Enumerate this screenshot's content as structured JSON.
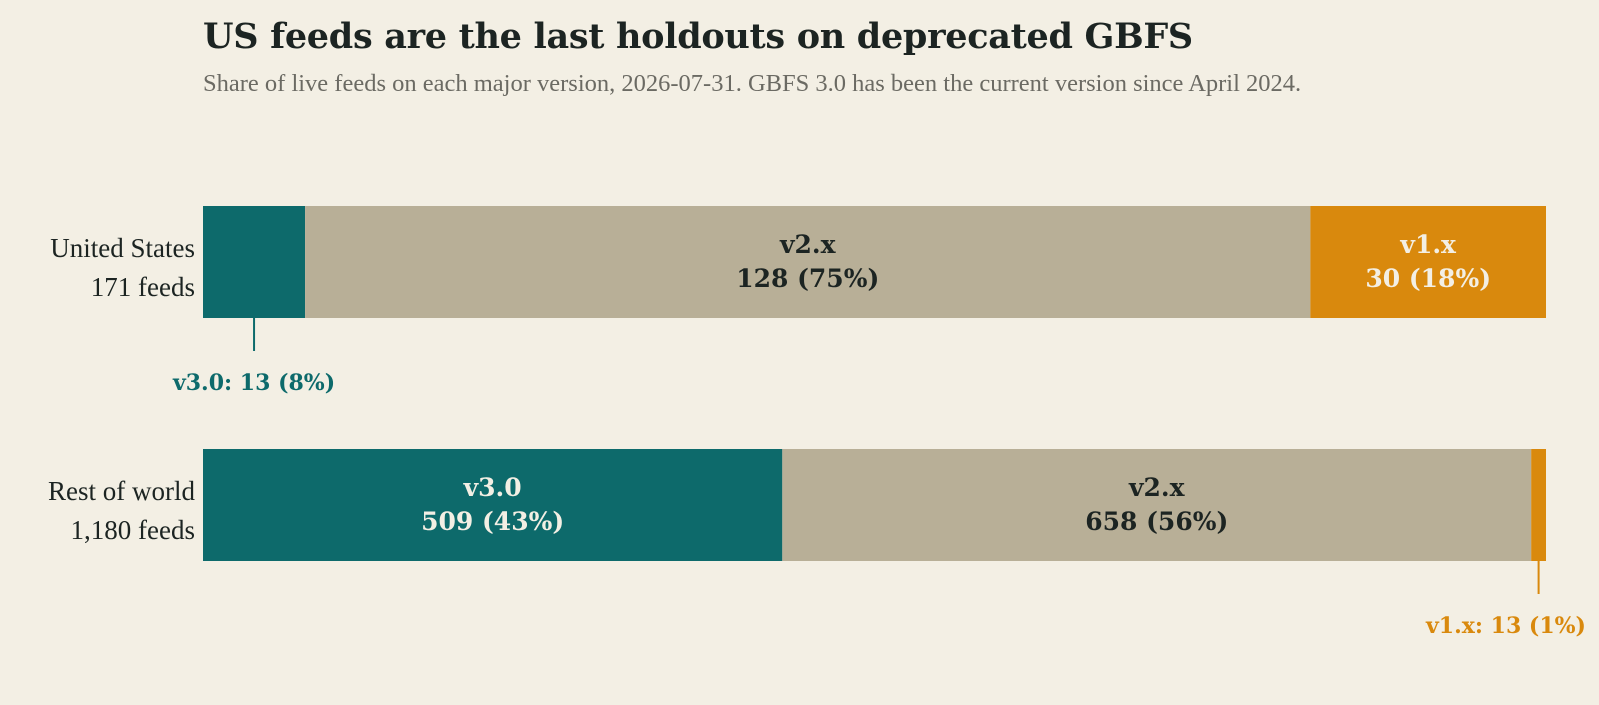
{
  "chart_data": {
    "type": "bar",
    "orientation": "horizontal",
    "stacked": true,
    "normalized": true,
    "title": "US feeds are the last holdouts on deprecated GBFS",
    "subtitle": "Share of live feeds on each major version, 2026-07-31. GBFS 3.0 has been the current version since April 2024.",
    "xlim": [
      0,
      1
    ],
    "grid": false,
    "legend": "none",
    "categories": [
      {
        "name": "United States",
        "total_label": "171 feeds",
        "total": 171
      },
      {
        "name": "Rest of world",
        "total_label": "1,180 feeds",
        "total": 1180
      }
    ],
    "series": [
      {
        "name": "v3.0",
        "color": "#0d6a6b",
        "text_color": "#f3efe4",
        "values": [
          13,
          509
        ],
        "shares": [
          "8%",
          "43%"
        ],
        "labels": [
          "",
          "v3.0"
        ],
        "value_labels": [
          "",
          "509  (43%)"
        ],
        "callouts": [
          "v3.0: 13 (8%)",
          ""
        ]
      },
      {
        "name": "v2.x",
        "color": "#b8af97",
        "text_color": "#1c2422",
        "values": [
          128,
          658
        ],
        "shares": [
          "75%",
          "56%"
        ],
        "labels": [
          "v2.x",
          "v2.x"
        ],
        "value_labels": [
          "128  (75%)",
          "658  (56%)"
        ],
        "callouts": [
          "",
          ""
        ]
      },
      {
        "name": "v1.x",
        "color": "#d9890d",
        "text_color": "#f3efe4",
        "values": [
          30,
          13
        ],
        "shares": [
          "18%",
          "1%"
        ],
        "labels": [
          "v1.x",
          ""
        ],
        "value_labels": [
          "30  (18%)",
          ""
        ],
        "callouts": [
          "",
          "v1.x: 13 (1%)"
        ]
      }
    ]
  }
}
